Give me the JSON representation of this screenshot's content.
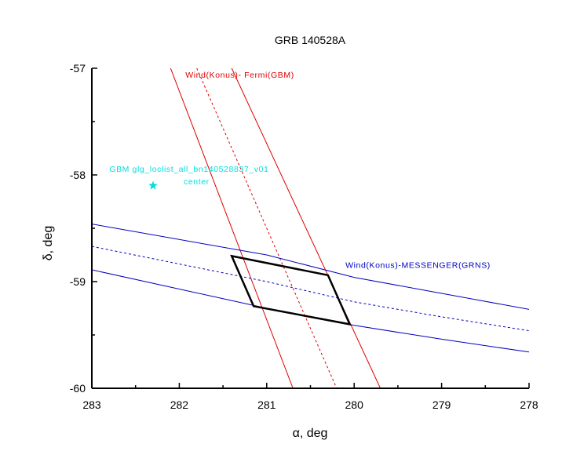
{
  "chart_data": {
    "type": "line",
    "title": "GRB 140528A",
    "xlabel": "α, deg",
    "ylabel": "δ, deg",
    "xlim": [
      283,
      278
    ],
    "ylim": [
      -60,
      -57
    ],
    "x_reversed": true,
    "x_ticks": [
      283,
      282,
      281,
      280,
      279,
      278
    ],
    "x_tick_labels": [
      "283",
      "282",
      "281",
      "280",
      "279",
      "278"
    ],
    "y_ticks": [
      -57,
      -58,
      -59,
      -60
    ],
    "y_tick_labels": [
      "-57",
      "-58",
      "-59",
      "-60"
    ],
    "grid": false,
    "legend": "none",
    "series": [
      {
        "name": "Wind(Konus)- Fermi(GBM)",
        "role": "bound",
        "color": "#e00000",
        "dash": false,
        "x": [
          282.1,
          280.7
        ],
        "y": [
          -57.0,
          -60.0
        ]
      },
      {
        "name": "Wind(Konus)- Fermi(GBM)",
        "role": "center",
        "color": "#e00000",
        "dash": true,
        "x": [
          281.8,
          280.2
        ],
        "y": [
          -57.0,
          -60.0
        ]
      },
      {
        "name": "Wind(Konus)- Fermi(GBM)",
        "role": "bound",
        "color": "#e00000",
        "dash": false,
        "x": [
          281.4,
          279.7
        ],
        "y": [
          -57.0,
          -60.0
        ]
      },
      {
        "name": "Wind(Konus)-MESSENGER(GRNS)",
        "role": "bound",
        "color": "#0000c0",
        "dash": false,
        "x": [
          283.0,
          281.0,
          280.0,
          279.0,
          278.0
        ],
        "y": [
          -58.46,
          -58.75,
          -58.96,
          -59.11,
          -59.26
        ]
      },
      {
        "name": "Wind(Konus)-MESSENGER(GRNS)",
        "role": "center",
        "color": "#0000c0",
        "dash": true,
        "x": [
          283.0,
          281.0,
          280.0,
          279.0,
          278.0
        ],
        "y": [
          -58.67,
          -59.0,
          -59.19,
          -59.33,
          -59.46
        ]
      },
      {
        "name": "Wind(Konus)-MESSENGER(GRNS)",
        "role": "bound",
        "color": "#0000c0",
        "dash": false,
        "x": [
          283.0,
          281.0,
          280.0,
          279.0,
          278.0
        ],
        "y": [
          -58.89,
          -59.25,
          -59.41,
          -59.54,
          -59.66
        ]
      }
    ],
    "box": {
      "color": "#000000",
      "x": [
        281.4,
        280.3,
        280.05,
        281.15,
        281.4
      ],
      "y": [
        -58.76,
        -58.94,
        -59.4,
        -59.23,
        -58.76
      ]
    },
    "points": [
      {
        "x": 282.3,
        "y": -58.1,
        "marker": "star",
        "color": "#00e0e0"
      }
    ],
    "annotations": [
      {
        "text": "Wind(Konus)- Fermi(GBM)",
        "color": "#e00000",
        "x": 281.93,
        "y": -57.09,
        "anchor": "start"
      },
      {
        "text": "Wind(Konus)-MESSENGER(GRNS)",
        "color": "#0000c0",
        "x": 280.1,
        "y": -58.87,
        "anchor": "start"
      },
      {
        "text": "GBM glg_loclist_all_bn140528837_v01",
        "color": "#00e0e0",
        "x": 282.8,
        "y": -57.97,
        "anchor": "start"
      },
      {
        "text": "center",
        "color": "#00e0e0",
        "x": 281.95,
        "y": -58.09,
        "anchor": "start"
      }
    ]
  }
}
